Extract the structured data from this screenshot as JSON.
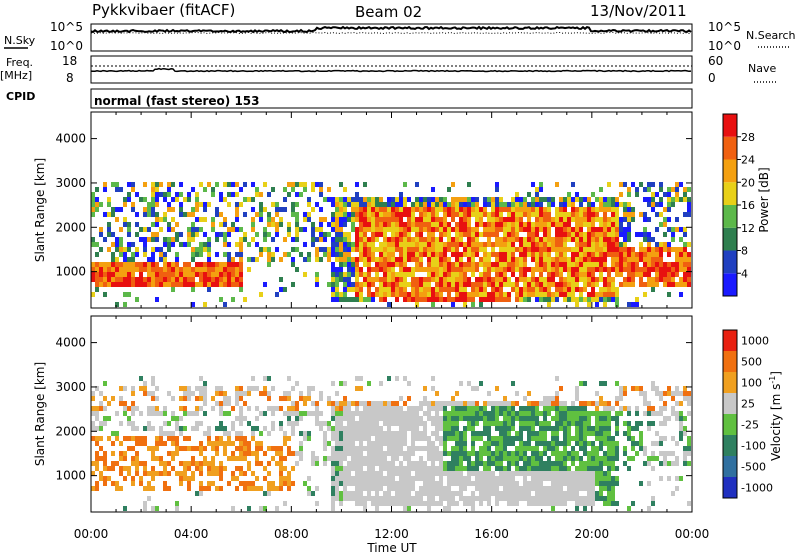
{
  "header": {
    "station": "Pykkvibaer (fitACF)",
    "beam": "Beam 02",
    "date": "13/Nov/2011"
  },
  "noise_panel": {
    "left_label": "N.Sky",
    "right_label": "N.Search",
    "left_ticks": [
      "10^5",
      "10^0"
    ],
    "right_ticks": [
      "10^5",
      "10^0"
    ]
  },
  "freq_panel": {
    "left_label_1": "Freq.",
    "left_label_2": "[MHz]",
    "right_label": "Nave",
    "left_ticks": [
      "18",
      "8"
    ],
    "right_ticks": [
      "60",
      "0"
    ]
  },
  "cpid": {
    "label": "CPID",
    "text": "normal (fast stereo) 153"
  },
  "x_axis": {
    "title": "Time UT",
    "ticks": [
      "00:00",
      "04:00",
      "08:00",
      "12:00",
      "16:00",
      "20:00",
      "00:00"
    ],
    "range_hours": [
      0,
      24
    ]
  },
  "chart_data": [
    {
      "type": "heatmap",
      "panel": "power",
      "ylabel": "Slant Range [km]",
      "yticks": [
        "1000",
        "2000",
        "3000",
        "4000"
      ],
      "ylim": [
        180,
        4600
      ],
      "colorbar": {
        "title": "Power [dB]",
        "ticks": [
          "4",
          "8",
          "12",
          "16",
          "20",
          "24",
          "28"
        ],
        "range": [
          0,
          32
        ],
        "colors": [
          "#1a1aff",
          "#2040c0",
          "#2f7f4f",
          "#5cb84a",
          "#e8d018",
          "#f4a010",
          "#f06010",
          "#e81010"
        ]
      }
    },
    {
      "type": "heatmap",
      "panel": "velocity",
      "ylabel": "Slant Range [km]",
      "yticks": [
        "1000",
        "2000",
        "3000",
        "4000"
      ],
      "ylim": [
        180,
        4600
      ],
      "colorbar": {
        "title": "Velocity [m s",
        "title_sup": "-1",
        "title_end": "]",
        "ticks": [
          "1000",
          "500",
          "100",
          "25",
          "-25",
          "-100",
          "-500",
          "-1000"
        ],
        "colors": [
          "#2030c0",
          "#3070a0",
          "#2f8060",
          "#60c040",
          "#c8c8c8",
          "#f0a020",
          "#f07010",
          "#e82010"
        ]
      }
    }
  ]
}
